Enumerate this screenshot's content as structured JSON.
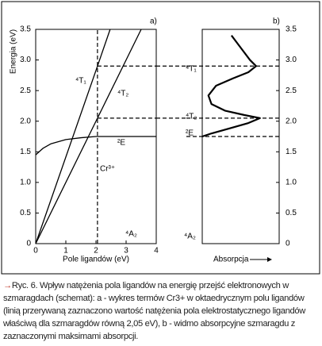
{
  "chart_data": [
    {
      "type": "line",
      "panel_label": "a)",
      "y_label": "Energia (eV)",
      "x_label": "Pole ligandów (eV)",
      "xlim": [
        0,
        4
      ],
      "ylim": [
        0,
        3.5
      ],
      "xticks": [
        0,
        1,
        2,
        3,
        4
      ],
      "yticks": [
        0,
        0.5,
        {
          "value": 1,
          "label": "1.0"
        },
        1.5,
        {
          "value": 2,
          "label": "2.0"
        },
        2.5,
        {
          "value": 3,
          "label": "3.0"
        },
        3.5
      ],
      "series": [
        {
          "name": "⁴T₁",
          "color": "#000000",
          "x": [
            0,
            2.05,
            2.47
          ],
          "values": [
            0,
            2.9,
            3.5
          ]
        },
        {
          "name": "⁴T₂",
          "color": "#000000",
          "x": [
            0,
            2.05,
            3.5
          ],
          "values": [
            0,
            2.05,
            3.5
          ]
        },
        {
          "name": "²E",
          "color": "#000000",
          "x": [
            0,
            0.25,
            0.5,
            1,
            1.5,
            2,
            3,
            4
          ],
          "values": [
            1.45,
            1.56,
            1.63,
            1.7,
            1.73,
            1.75,
            1.75,
            1.75
          ]
        }
      ],
      "field_x": 2.05,
      "levels": [
        2.9,
        2.05
      ],
      "annotations": [
        "Cr³⁺",
        "⁴A₂"
      ]
    },
    {
      "type": "line",
      "panel_label": "b)",
      "x_label": "Absorpcja",
      "xlim": [
        0,
        1
      ],
      "ylim": [
        0,
        3.5
      ],
      "yticks": [
        0,
        0.5,
        {
          "value": 1,
          "label": "1.0"
        },
        1.5,
        {
          "value": 2,
          "label": "2.0"
        },
        2.5,
        {
          "value": 3,
          "label": "3.0"
        },
        3.5
      ],
      "series": [
        {
          "color": "#000000",
          "x": [
            0.38,
            0.5,
            0.62,
            0.7,
            0.6,
            0.4,
            0.18,
            0.08,
            0.12,
            0.3,
            0.55,
            0.75,
            0.6,
            0.35,
            0.12,
            0
          ],
          "values": [
            3.4,
            3.2,
            3.0,
            2.9,
            2.8,
            2.7,
            2.58,
            2.42,
            2.28,
            2.17,
            2.1,
            2.05,
            1.97,
            1.88,
            1.8,
            1.75
          ]
        }
      ],
      "levels": [
        2.9,
        2.05,
        1.75
      ],
      "level_labels": [
        "⁴T₁",
        "⁴T₂",
        "²E"
      ],
      "annotations": [
        "⁴A₂"
      ]
    }
  ],
  "caption": {
    "marker": "→",
    "text": "Ryc. 6. Wpływ natężenia pola ligandów na energię przejść elektronowych w szmaragdach (schemat): a - wykres termów Cr3+ w oktaedrycznym polu ligandów (linią przerywaną zaznaczono wartość natężenia pola elektrostatycznego ligandów właściwą dla szmaragdów równą 2,05 eV), b - widmo absorpcyjne szmaragdu z zaznaczonymi maksimami absorpcji."
  }
}
